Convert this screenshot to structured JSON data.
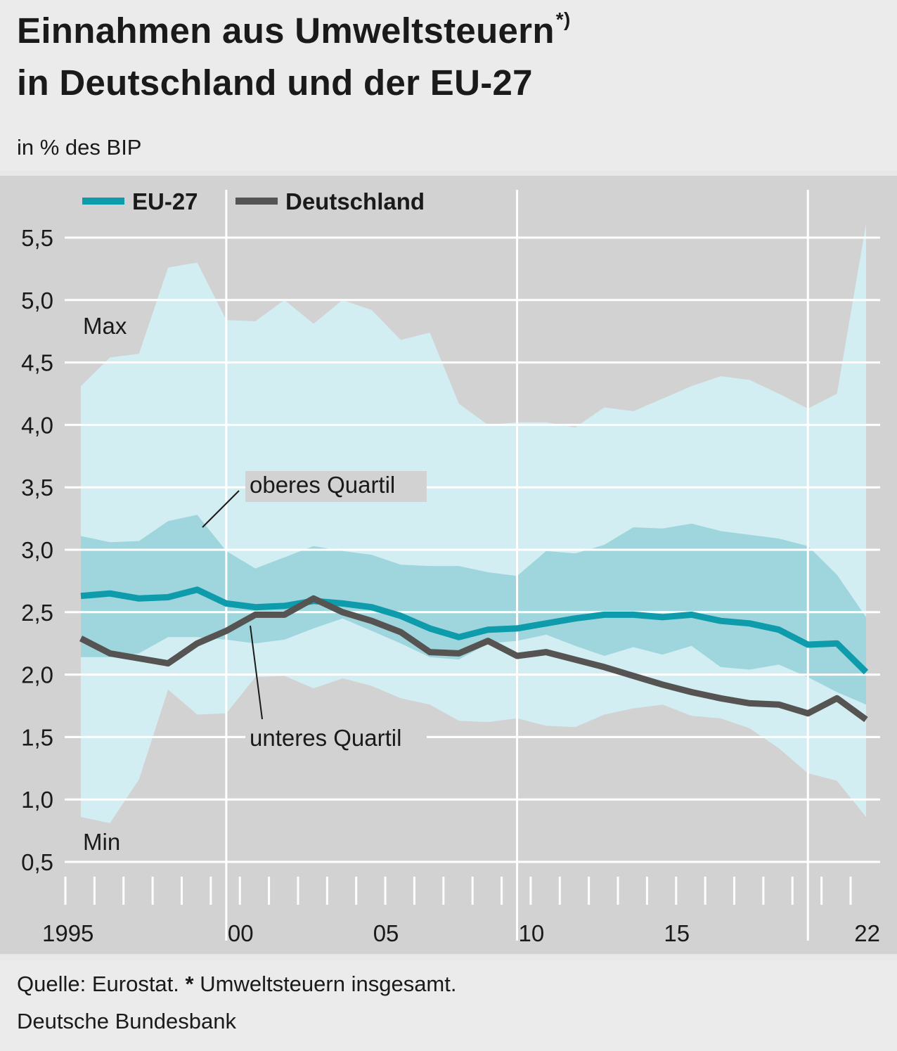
{
  "title": {
    "line1": "Einnahmen aus Umweltsteuern",
    "marker": "*)",
    "line2": "in Deutschland und der EU-27"
  },
  "subtitle": "in % des BIP",
  "footer": {
    "source_prefix": "Quelle: Eurostat.",
    "star": "*",
    "source_note": "Umweltsteuern insgesamt.",
    "publisher": "Deutsche Bundesbank"
  },
  "colors": {
    "panel_background": "#d2d2d2",
    "outer_band": "#d3eef2",
    "inner_band": "#9fd6dd",
    "eu27_line": "#0e9bab",
    "germany_line": "#555452",
    "gridline": "#ffffff"
  },
  "chart_data": {
    "type": "line",
    "ylabel": "in % des BIP",
    "ylim": [
      0.5,
      5.5
    ],
    "yticks": [
      0.5,
      1.0,
      1.5,
      2.0,
      2.5,
      3.0,
      3.5,
      4.0,
      4.5,
      5.0,
      5.5
    ],
    "ytick_labels": [
      "0,5",
      "1,0",
      "1,5",
      "2,0",
      "2,5",
      "3,0",
      "3,5",
      "4,0",
      "4,5",
      "5,0",
      "5,5"
    ],
    "xlim": [
      1995,
      2022
    ],
    "x": [
      1995,
      1996,
      1997,
      1998,
      1999,
      2000,
      2001,
      2002,
      2003,
      2004,
      2005,
      2006,
      2007,
      2008,
      2009,
      2010,
      2011,
      2012,
      2013,
      2014,
      2015,
      2016,
      2017,
      2018,
      2019,
      2020,
      2021,
      2022
    ],
    "xtick_positions": [
      1995,
      2000,
      2005,
      2010,
      2015,
      2022
    ],
    "xtick_labels": [
      "1995",
      "00",
      "05",
      "10",
      "15",
      "22"
    ],
    "vertical_gridlines": [
      2000,
      2010,
      2020
    ],
    "grid": true,
    "legend_position": "top-left",
    "series": [
      {
        "name": "EU-27",
        "values": [
          2.63,
          2.65,
          2.61,
          2.62,
          2.68,
          2.57,
          2.54,
          2.55,
          2.59,
          2.57,
          2.54,
          2.47,
          2.37,
          2.3,
          2.36,
          2.37,
          2.41,
          2.45,
          2.48,
          2.48,
          2.46,
          2.48,
          2.43,
          2.41,
          2.36,
          2.24,
          2.25,
          2.02
        ]
      },
      {
        "name": "Deutschland",
        "values": [
          2.29,
          2.17,
          2.13,
          2.09,
          2.25,
          2.35,
          2.48,
          2.48,
          2.61,
          2.5,
          2.43,
          2.34,
          2.18,
          2.17,
          2.27,
          2.15,
          2.18,
          2.12,
          2.06,
          1.99,
          1.92,
          1.86,
          1.81,
          1.77,
          1.76,
          1.69,
          1.81,
          1.64
        ]
      }
    ],
    "bands": [
      {
        "name": "Max",
        "values": [
          4.31,
          4.54,
          4.57,
          5.26,
          5.3,
          4.84,
          4.83,
          5.0,
          4.81,
          5.0,
          4.92,
          4.68,
          4.74,
          4.17,
          4.0,
          4.02,
          4.02,
          3.98,
          4.14,
          4.11,
          4.21,
          4.31,
          4.39,
          4.36,
          4.25,
          4.13,
          4.25,
          5.61
        ]
      },
      {
        "name": "Min",
        "values": [
          0.86,
          0.81,
          1.16,
          1.88,
          1.68,
          1.69,
          1.98,
          1.99,
          1.89,
          1.97,
          1.91,
          1.81,
          1.76,
          1.63,
          1.62,
          1.65,
          1.59,
          1.58,
          1.68,
          1.73,
          1.76,
          1.67,
          1.65,
          1.57,
          1.41,
          1.21,
          1.15,
          0.86
        ]
      },
      {
        "name": "oberes Quartil",
        "values": [
          3.11,
          3.06,
          3.07,
          3.23,
          3.28,
          2.99,
          2.85,
          2.94,
          3.03,
          2.99,
          2.96,
          2.88,
          2.87,
          2.87,
          2.82,
          2.79,
          2.99,
          2.97,
          3.04,
          3.18,
          3.17,
          3.21,
          3.15,
          3.12,
          3.09,
          3.03,
          2.8,
          2.46
        ]
      },
      {
        "name": "unteres Quartil",
        "values": [
          2.14,
          2.14,
          2.17,
          2.3,
          2.3,
          2.28,
          2.25,
          2.28,
          2.37,
          2.45,
          2.35,
          2.25,
          2.14,
          2.12,
          2.25,
          2.27,
          2.32,
          2.23,
          2.15,
          2.22,
          2.16,
          2.23,
          2.06,
          2.04,
          2.08,
          1.98,
          1.86,
          1.76
        ]
      }
    ]
  }
}
